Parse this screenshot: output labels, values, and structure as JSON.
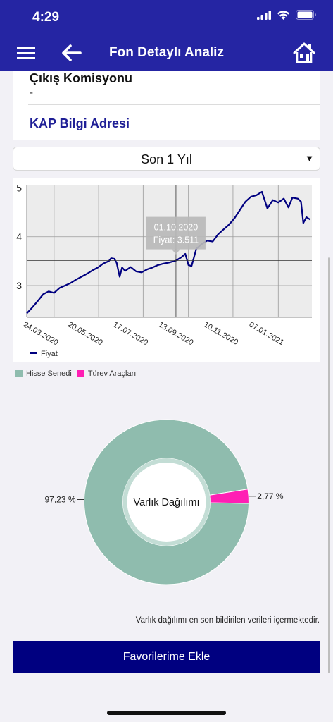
{
  "status_bar": {
    "time": "4:29"
  },
  "header": {
    "title": "Fon Detaylı Analiz",
    "menu_icon": "hamburger-icon",
    "back_icon": "arrow-left-icon",
    "home_icon": "home-icon"
  },
  "details": {
    "komisyon_label": "Çıkış Komisyonu",
    "komisyon_value": "-",
    "kap_link": "KAP Bilgi Adresi"
  },
  "period": {
    "selected": "Son 1 Yıl"
  },
  "chart_data": {
    "type": "line",
    "series": [
      {
        "name": "Fiyat",
        "color": "#000080",
        "values": [
          [
            "2020-03-24",
            2.43
          ],
          [
            "2020-03-31",
            2.55
          ],
          [
            "2020-04-07",
            2.68
          ],
          [
            "2020-04-14",
            2.82
          ],
          [
            "2020-04-21",
            2.88
          ],
          [
            "2020-04-28",
            2.85
          ],
          [
            "2020-05-05",
            2.95
          ],
          [
            "2020-05-12",
            3.0
          ],
          [
            "2020-05-19",
            3.05
          ],
          [
            "2020-05-26",
            3.12
          ],
          [
            "2020-06-02",
            3.18
          ],
          [
            "2020-06-09",
            3.24
          ],
          [
            "2020-06-16",
            3.31
          ],
          [
            "2020-06-23",
            3.37
          ],
          [
            "2020-06-30",
            3.45
          ],
          [
            "2020-07-07",
            3.5
          ],
          [
            "2020-07-10",
            3.56
          ],
          [
            "2020-07-14",
            3.55
          ],
          [
            "2020-07-17",
            3.47
          ],
          [
            "2020-07-21",
            3.18
          ],
          [
            "2020-07-24",
            3.37
          ],
          [
            "2020-07-28",
            3.3
          ],
          [
            "2020-08-04",
            3.38
          ],
          [
            "2020-08-11",
            3.29
          ],
          [
            "2020-08-18",
            3.27
          ],
          [
            "2020-08-25",
            3.33
          ],
          [
            "2020-09-01",
            3.37
          ],
          [
            "2020-09-08",
            3.42
          ],
          [
            "2020-09-15",
            3.45
          ],
          [
            "2020-09-22",
            3.47
          ],
          [
            "2020-10-01",
            3.511
          ],
          [
            "2020-10-08",
            3.58
          ],
          [
            "2020-10-13",
            3.65
          ],
          [
            "2020-10-17",
            3.42
          ],
          [
            "2020-10-21",
            3.4
          ],
          [
            "2020-10-27",
            3.75
          ],
          [
            "2020-11-03",
            3.85
          ],
          [
            "2020-11-10",
            3.92
          ],
          [
            "2020-11-17",
            3.9
          ],
          [
            "2020-11-24",
            4.05
          ],
          [
            "2020-12-01",
            4.15
          ],
          [
            "2020-12-08",
            4.25
          ],
          [
            "2020-12-15",
            4.38
          ],
          [
            "2020-12-22",
            4.55
          ],
          [
            "2020-12-29",
            4.72
          ],
          [
            "2021-01-05",
            4.82
          ],
          [
            "2021-01-12",
            4.85
          ],
          [
            "2021-01-19",
            4.92
          ],
          [
            "2021-01-26",
            4.58
          ],
          [
            "2021-02-02",
            4.75
          ],
          [
            "2021-02-09",
            4.7
          ],
          [
            "2021-02-16",
            4.78
          ],
          [
            "2021-02-22",
            4.6
          ],
          [
            "2021-02-27",
            4.8
          ],
          [
            "2021-03-06",
            4.78
          ],
          [
            "2021-03-10",
            4.72
          ],
          [
            "2021-03-13",
            4.28
          ],
          [
            "2021-03-17",
            4.4
          ],
          [
            "2021-03-22",
            4.35
          ]
        ]
      }
    ],
    "x_ticks": [
      "24.03.2020",
      "20.05.2020",
      "17.07.2020",
      "13.09.2020",
      "10.11.2020",
      "07.01.2021"
    ],
    "y_ticks": [
      "3",
      "4",
      "5"
    ],
    "ylim": [
      2.35,
      5.05
    ],
    "xlim": [
      "2020-03-24",
      "2021-03-24"
    ],
    "grid": true,
    "tooltip": {
      "date": "01.10.2020",
      "text": "Fiyat: 3.511",
      "x": "2020-10-01",
      "y": 3.511
    },
    "legend": "bottom-left"
  },
  "allocation": {
    "center_label": "Varlık Dağılımı",
    "legend": [
      {
        "name": "Hisse Senedi",
        "color": "#8fbcae"
      },
      {
        "name": "Türev Araçları",
        "color": "#ff1fb4"
      }
    ],
    "slices": [
      {
        "name": "Hisse Senedi",
        "value": 97.23,
        "label": "97,23 %",
        "color": "#8fbcae"
      },
      {
        "name": "Türev Araçları",
        "value": 2.77,
        "label": "2,77 %",
        "color": "#ff1fb4"
      }
    ]
  },
  "note": "Varlık dağılımı en son bildirilen verileri içermektedir.",
  "favorite_button": "Favorilerime Ekle"
}
